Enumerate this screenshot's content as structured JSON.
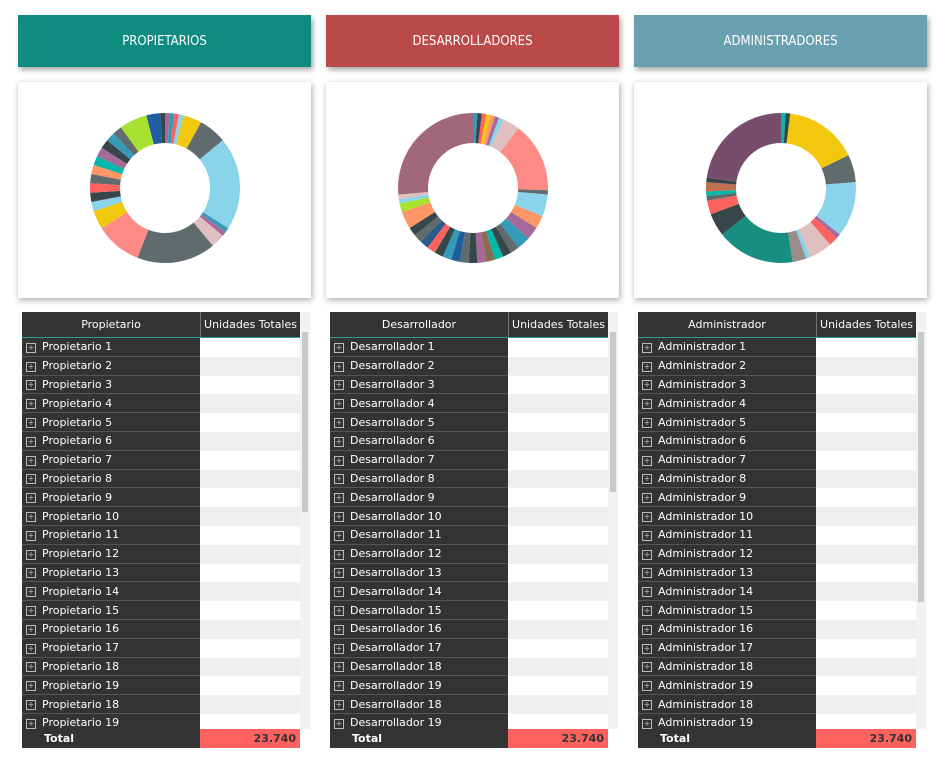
{
  "chart_data": [
    {
      "type": "pie",
      "values": [
        1,
        1,
        1,
        1,
        4,
        6,
        20,
        1,
        1,
        3,
        17,
        10,
        4,
        2,
        2,
        2,
        2,
        2,
        2,
        2,
        2,
        2,
        2,
        6,
        3,
        1
      ],
      "colors": [
        "#a66999",
        "#3599b8",
        "#fd625e",
        "#8ad4eb",
        "#f2c80f",
        "#5f6b6d",
        "#8ad4eb",
        "#3599b8",
        "#a66999",
        "#dfbfbf",
        "#5f6b6d",
        "#fd8a85",
        "#f2c80f",
        "#8ad4eb",
        "#374649",
        "#fd625e",
        "#5f6b6d",
        "#fe9666",
        "#01b8aa",
        "#a66999",
        "#374649",
        "#3599b8",
        "#5f6b6d",
        "#a6e22e",
        "#1f5fa0",
        "#374649"
      ]
    },
    {
      "type": "pie",
      "values": [
        1,
        1,
        1,
        1,
        1,
        1,
        1,
        4,
        16,
        1,
        5,
        3,
        3,
        3,
        2,
        2,
        2,
        2,
        2,
        2,
        2,
        2,
        2,
        2,
        2,
        2,
        2,
        2,
        4,
        2,
        1,
        1,
        28
      ],
      "colors": [
        "#3599b8",
        "#374649",
        "#fd625e",
        "#f2c80f",
        "#fe9666",
        "#a66999",
        "#8ad4eb",
        "#dfbfbf",
        "#fd8a85",
        "#5f6b6d",
        "#8ad4eb",
        "#fe9666",
        "#a66999",
        "#3599b8",
        "#5f6b6d",
        "#374649",
        "#01b8aa",
        "#8c6d4f",
        "#a66999",
        "#374649",
        "#5f6b6d",
        "#1f5fa0",
        "#3599b8",
        "#374649",
        "#fd625e",
        "#2b5c8a",
        "#5f6b6d",
        "#374649",
        "#fe9666",
        "#a6e22e",
        "#8ad4eb",
        "#dfbfbf",
        "#a0687a"
      ]
    },
    {
      "type": "pie",
      "values": [
        1,
        1,
        16,
        6,
        12,
        1,
        2,
        5,
        1,
        3,
        17,
        5,
        3,
        1,
        1,
        2,
        1,
        23
      ],
      "colors": [
        "#01b8aa",
        "#374649",
        "#f2c80f",
        "#5f6b6d",
        "#8ad4eb",
        "#a66999",
        "#fd625e",
        "#dfbfbf",
        "#8ad4eb",
        "#9c8c8c",
        "#178e80",
        "#374649",
        "#fd625e",
        "#5f6b6d",
        "#01b8aa",
        "#c07050",
        "#374649",
        "#774d6e"
      ]
    }
  ],
  "panels": [
    {
      "header": "PROPIETARIOS",
      "table": {
        "columns": [
          "Propietario",
          "Unidades Totales"
        ],
        "rows": [
          "Propietario 1",
          "Propietario 2",
          "Propietario 3",
          "Propietario 4",
          "Propietario 5",
          "Propietario 6",
          "Propietario 7",
          "Propietario 8",
          "Propietario 9",
          "Propietario 10",
          "Propietario 11",
          "Propietario 12",
          "Propietario 13",
          "Propietario 14",
          "Propietario 15",
          "Propietario 16",
          "Propietario 17",
          "Propietario 18",
          "Propietario 19",
          "Propietario 18",
          "Propietario 19"
        ],
        "total_label": "Total",
        "total": "23.740"
      }
    },
    {
      "header": "DESARROLLADORES",
      "table": {
        "columns": [
          "Desarrollador",
          "Unidades Totales"
        ],
        "rows": [
          "Desarrollador 1",
          "Desarrollador 2",
          "Desarrollador 3",
          "Desarrollador 4",
          "Desarrollador 5",
          "Desarrollador 6",
          "Desarrollador 7",
          "Desarrollador 8",
          "Desarrollador 9",
          "Desarrollador 10",
          "Desarrollador 11",
          "Desarrollador 12",
          "Desarrollador 13",
          "Desarrollador 14",
          "Desarrollador 15",
          "Desarrollador 16",
          "Desarrollador 17",
          "Desarrollador 18",
          "Desarrollador 19",
          "Desarrollador 18",
          "Desarrollador 19"
        ],
        "total_label": "Total",
        "total": "23.740"
      }
    },
    {
      "header": "ADMINISTRADORES",
      "table": {
        "columns": [
          "Administrador",
          "Unidades Totales"
        ],
        "rows": [
          "Administrador 1",
          "Administrador 2",
          "Administrador 3",
          "Administrador 4",
          "Administrador 5",
          "Administrador 6",
          "Administrador 7",
          "Administrador 8",
          "Administrador 9",
          "Administrador 10",
          "Administrador 11",
          "Administrador 12",
          "Administrador 13",
          "Administrador 14",
          "Administrador 15",
          "Administrador 16",
          "Administrador 17",
          "Administrador 18",
          "Administrador 19",
          "Administrador 18",
          "Administrador 19"
        ],
        "total_label": "Total",
        "total": "23.740"
      }
    }
  ]
}
